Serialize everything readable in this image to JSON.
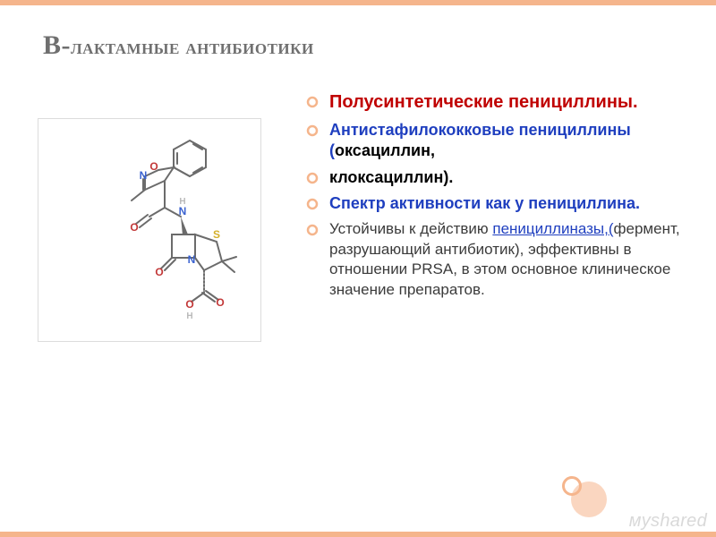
{
  "colors": {
    "accent": "#f5b58c",
    "title": "#6f6f6f",
    "text_dark": "#3b3b3b",
    "text_black": "#000000",
    "blue": "#1f3fbf",
    "red": "#c00000",
    "bullet": "#f5b58c",
    "mol_blue": "#3a62d0",
    "mol_red": "#c23838",
    "mol_yellow": "#d4b02a",
    "mol_gray": "#6b6b6b",
    "mol_lightgray": "#b9b9b9",
    "watermark": "#d9d9d9"
  },
  "title": {
    "cap": "Β-",
    "rest": "лактамные антибиотики",
    "fontsize": 24,
    "cap_fontsize": 30
  },
  "bullets": [
    {
      "runs": [
        {
          "text": "Полусинтетические пенициллины.",
          "color": "red",
          "weight": "bold",
          "size": 20
        }
      ]
    },
    {
      "runs": [
        {
          "text": "Антистафилококковые пенициллины (",
          "color": "blue",
          "weight": "bold",
          "size": 18
        },
        {
          "text": "оксациллин,",
          "color": "text_black",
          "weight": "bold",
          "size": 18
        }
      ]
    },
    {
      "runs": [
        {
          "text": "клоксациллин).",
          "color": "text_black",
          "weight": "bold",
          "size": 18
        }
      ]
    },
    {
      "runs": [
        {
          "text": "Спектр активности как у пенициллина.",
          "color": "blue",
          "weight": "bold",
          "size": 18
        }
      ]
    },
    {
      "runs": [
        {
          "text": "Устойчивы к действию ",
          "color": "text_dark",
          "weight": "normal",
          "size": 17
        },
        {
          "text": "пенициллиназы,(",
          "color": "blue",
          "weight": "normal",
          "size": 17,
          "underline": true
        },
        {
          "text": "фермент, разрушающий антибиотик), эффективны в отношении PRSA, в этом основное клиническое значение препаратов.",
          "color": "text_dark",
          "weight": "normal",
          "size": 17
        }
      ]
    }
  ],
  "watermark": "мyshared",
  "molecule": {
    "atoms": {
      "N1": "N",
      "N2_H": "H",
      "N3": "N",
      "N4": "N",
      "O1": "O",
      "O2": "O",
      "O3": "O",
      "O4": "O",
      "O5_H": "H",
      "S1": "S"
    }
  }
}
